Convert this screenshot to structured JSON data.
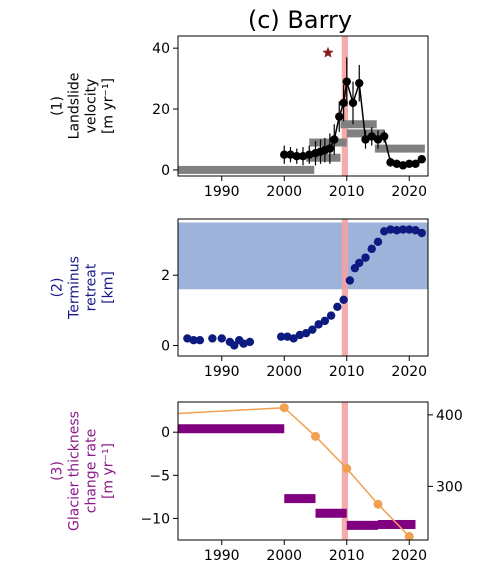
{
  "title": "(c) Barry",
  "panels": [
    {
      "key": "velocity",
      "ylabel_lines": [
        "(1)",
        "Landslide",
        "velocity",
        "[m yr⁻¹]"
      ],
      "ylabel_color": "#000000",
      "yticks": [
        "0",
        "20",
        "40"
      ]
    },
    {
      "key": "retreat",
      "ylabel_lines": [
        "(2)",
        "Terminus",
        "retreat",
        "[km]"
      ],
      "ylabel_color": "#1a1a8c",
      "yticks": [
        "0",
        "2"
      ]
    },
    {
      "key": "thickness",
      "ylabel_lines": [
        "(3)",
        "Glacier thickness",
        "change rate",
        "[m yr⁻¹]"
      ],
      "ylabel_color": "#8b1a8b",
      "yticks": [
        "0",
        "−5",
        "−10"
      ],
      "y2ticks": [
        "300",
        "400"
      ]
    }
  ],
  "xticks": [
    "1990",
    "2000",
    "2010",
    "2020"
  ],
  "colors": {
    "highlight": "#f4a3a3",
    "velocity_points": "#000000",
    "velocity_bars": "#808080",
    "star": "#8b1a1a",
    "retreat_band": "#9db3d9",
    "retreat_points": "#0d1a80",
    "thickness_bars": "#800080",
    "secondary_line": "#f0a050"
  },
  "chart_data": [
    {
      "type": "line",
      "panel": "(1) Landslide velocity",
      "xlim": [
        1983,
        2023
      ],
      "ylim": [
        -2,
        44
      ],
      "highlight_x": [
        2009.2,
        2010.2
      ],
      "star": {
        "x": 2007,
        "y": 38.5
      },
      "points": [
        {
          "x": 2000,
          "y": 5,
          "err": 3
        },
        {
          "x": 2001,
          "y": 5,
          "err": 2.5
        },
        {
          "x": 2002,
          "y": 4.5,
          "err": 2.5
        },
        {
          "x": 2003,
          "y": 4.5,
          "err": 3
        },
        {
          "x": 2004,
          "y": 5,
          "err": 3
        },
        {
          "x": 2005,
          "y": 5.5,
          "err": 4
        },
        {
          "x": 2005.8,
          "y": 6,
          "err": 4
        },
        {
          "x": 2006.5,
          "y": 6.5,
          "err": 4
        },
        {
          "x": 2007.3,
          "y": 7,
          "err": 5
        },
        {
          "x": 2008,
          "y": 10,
          "err": 5
        },
        {
          "x": 2008.8,
          "y": 17.5,
          "err": 5
        },
        {
          "x": 2009.5,
          "y": 22,
          "err": 6
        },
        {
          "x": 2010,
          "y": 29,
          "err": 8
        },
        {
          "x": 2011,
          "y": 22,
          "err": 7
        },
        {
          "x": 2012,
          "y": 28.5,
          "err": 6
        },
        {
          "x": 2013,
          "y": 10,
          "err": 3
        },
        {
          "x": 2014,
          "y": 11,
          "err": 3
        },
        {
          "x": 2015,
          "y": 10,
          "err": 3
        },
        {
          "x": 2016,
          "y": 11,
          "err": 2
        },
        {
          "x": 2017,
          "y": 2.5,
          "err": 1.5
        },
        {
          "x": 2018,
          "y": 2,
          "err": 1
        },
        {
          "x": 2019,
          "y": 1.5,
          "err": 1
        },
        {
          "x": 2020,
          "y": 2,
          "err": 1
        },
        {
          "x": 2021,
          "y": 2,
          "err": 1
        },
        {
          "x": 2022,
          "y": 3.5,
          "err": 1
        }
      ],
      "bars": [
        {
          "x0": 1983,
          "x1": 2004.8,
          "y": 0
        },
        {
          "x0": 2003.5,
          "x1": 2009,
          "y": 4
        },
        {
          "x0": 2004,
          "x1": 2010,
          "y": 9
        },
        {
          "x0": 2009,
          "x1": 2014.8,
          "y": 15
        },
        {
          "x0": 2010,
          "x1": 2016,
          "y": 12
        },
        {
          "x0": 2014.5,
          "x1": 2022.5,
          "y": 7
        }
      ]
    },
    {
      "type": "scatter",
      "panel": "(2) Terminus retreat",
      "xlim": [
        1983,
        2023
      ],
      "ylim": [
        -0.3,
        3.6
      ],
      "band": [
        1.6,
        3.5
      ],
      "highlight_x": [
        2009.2,
        2010.2
      ],
      "points": [
        {
          "x": 1984.5,
          "y": 0.2
        },
        {
          "x": 1985.5,
          "y": 0.15
        },
        {
          "x": 1986.5,
          "y": 0.15
        },
        {
          "x": 1988.5,
          "y": 0.2
        },
        {
          "x": 1990,
          "y": 0.2
        },
        {
          "x": 1991.3,
          "y": 0.1
        },
        {
          "x": 1992,
          "y": 0.0
        },
        {
          "x": 1992.8,
          "y": 0.15
        },
        {
          "x": 1993.5,
          "y": 0.05
        },
        {
          "x": 1994.5,
          "y": 0.1
        },
        {
          "x": 1999.5,
          "y": 0.25
        },
        {
          "x": 2000.5,
          "y": 0.25
        },
        {
          "x": 2001.5,
          "y": 0.2
        },
        {
          "x": 2002.5,
          "y": 0.3
        },
        {
          "x": 2003.5,
          "y": 0.35
        },
        {
          "x": 2004.5,
          "y": 0.45
        },
        {
          "x": 2005.5,
          "y": 0.6
        },
        {
          "x": 2006.5,
          "y": 0.7
        },
        {
          "x": 2007.5,
          "y": 0.85
        },
        {
          "x": 2008.5,
          "y": 1.1
        },
        {
          "x": 2009.5,
          "y": 1.3
        },
        {
          "x": 2010.5,
          "y": 1.85
        },
        {
          "x": 2011.3,
          "y": 2.2
        },
        {
          "x": 2012,
          "y": 2.35
        },
        {
          "x": 2013,
          "y": 2.5
        },
        {
          "x": 2014,
          "y": 2.75
        },
        {
          "x": 2015,
          "y": 2.95
        },
        {
          "x": 2016,
          "y": 3.25
        },
        {
          "x": 2017,
          "y": 3.3
        },
        {
          "x": 2018,
          "y": 3.28
        },
        {
          "x": 2019,
          "y": 3.3
        },
        {
          "x": 2020,
          "y": 3.3
        },
        {
          "x": 2021,
          "y": 3.28
        },
        {
          "x": 2022,
          "y": 3.2
        }
      ]
    },
    {
      "type": "bar",
      "panel": "(3) Glacier thickness change rate",
      "xlim": [
        1983,
        2023
      ],
      "ylim": [
        -12.5,
        3.5
      ],
      "y2lim": [
        225,
        418
      ],
      "highlight_x": [
        2009.2,
        2010.2
      ],
      "bars": [
        {
          "x0": 1983,
          "x1": 2000,
          "y": 0.4
        },
        {
          "x0": 2000,
          "x1": 2005,
          "y": -7.7
        },
        {
          "x0": 2005,
          "x1": 2010,
          "y": -9.4
        },
        {
          "x0": 2010,
          "x1": 2015,
          "y": -10.8
        },
        {
          "x0": 2015,
          "x1": 2021,
          "y": -10.7
        }
      ],
      "secondary_line": [
        {
          "x": 1983,
          "y": 402,
          "marker": false
        },
        {
          "x": 2000,
          "y": 410,
          "marker": true
        },
        {
          "x": 2005,
          "y": 370,
          "marker": true
        },
        {
          "x": 2010,
          "y": 325,
          "marker": true
        },
        {
          "x": 2015,
          "y": 275,
          "marker": true
        },
        {
          "x": 2020,
          "y": 230,
          "marker": true
        }
      ]
    }
  ]
}
